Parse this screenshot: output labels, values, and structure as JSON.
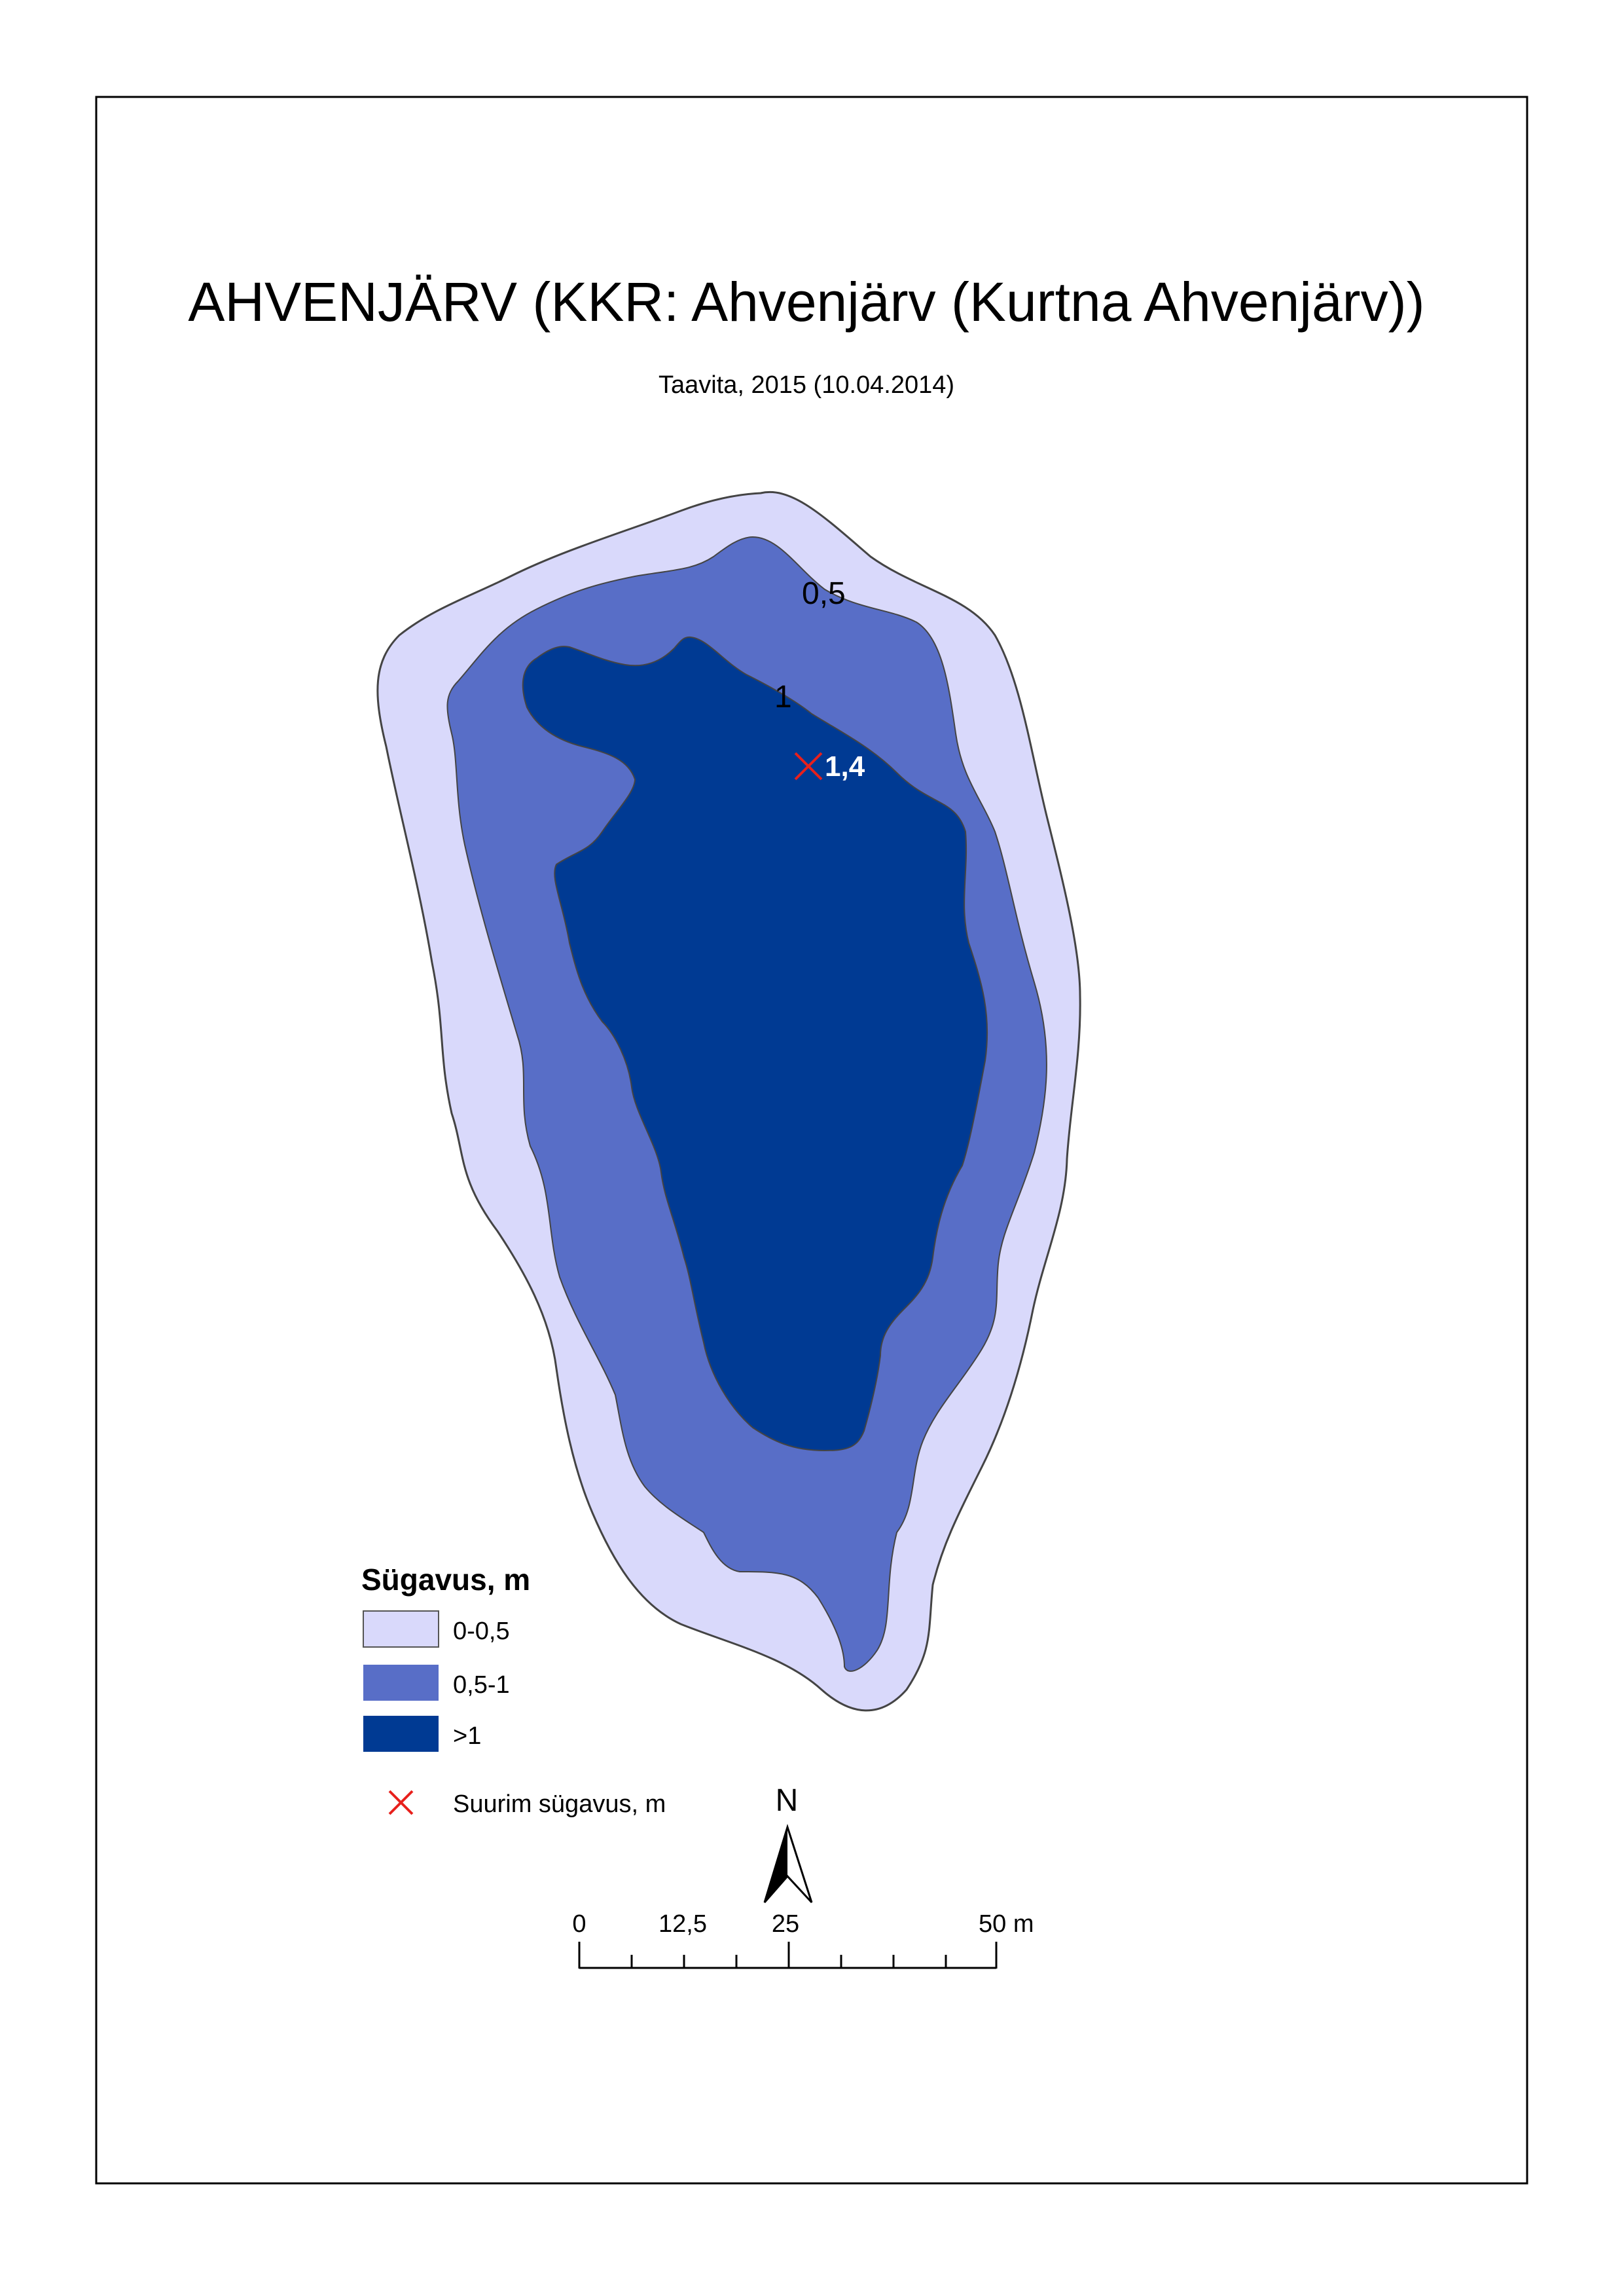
{
  "title": "AHVENJÄRV (KKR: Ahvenjärv (Kurtna Ahvenjärv))",
  "subtitle": "Taavita, 2015 (10.04.2014)",
  "contour_labels": {
    "c05": "0,5",
    "c1": "1"
  },
  "max_depth": {
    "value_label": "1,4"
  },
  "legend": {
    "title": "Sügavus, m",
    "classes": [
      {
        "label": "0-0,5",
        "color": "#d9d9fb"
      },
      {
        "label": "0,5-1",
        "color": "#586ec7"
      },
      {
        "label": ">1",
        "color": "#003a93"
      }
    ],
    "marker_label": "Suurim sügavus, m",
    "marker_color": "#e8201c"
  },
  "north_arrow": {
    "label": "N"
  },
  "scale_bar": {
    "ticks": [
      "0",
      "12,5",
      "25",
      "50 m"
    ]
  }
}
